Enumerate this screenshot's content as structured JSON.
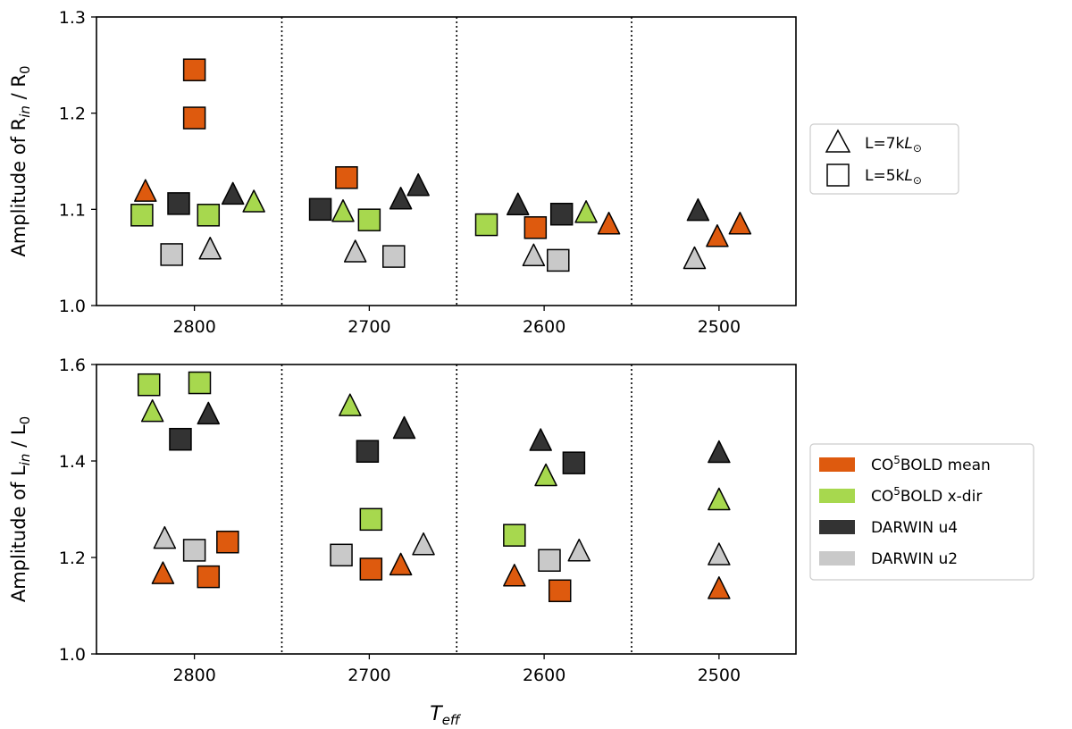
{
  "colors": {
    "co5bold_mean": "#de5a0e",
    "co5bold_xdir": "#a7d84e",
    "darwin_u4": "#333333",
    "darwin_u2": "#c9c9c9"
  },
  "chart_data": {
    "type": "scatter",
    "xlabel": "T",
    "xlabel_sub": "eff",
    "xlim": [
      2856,
      2456
    ],
    "xticks": [
      "2800",
      "2700",
      "2600",
      "2500"
    ],
    "group_separators": [
      2750,
      2650,
      2550
    ],
    "legend_size": {
      "position": "right-top",
      "entries": [
        {
          "marker": "triangle",
          "label_prefix": "L=7k",
          "label_L": "L",
          "label_sun": "⊙"
        },
        {
          "marker": "square",
          "label_prefix": "L=5k",
          "label_L": "L",
          "label_sun": "⊙"
        }
      ]
    },
    "legend_models": {
      "position": "right-bottom",
      "entries": [
        {
          "key": "co5bold_mean",
          "pre": "CO",
          "sup": "5",
          "post": "BOLD mean"
        },
        {
          "key": "co5bold_xdir",
          "pre": "CO",
          "sup": "5",
          "post": "BOLD x-dir"
        },
        {
          "key": "darwin_u4",
          "pre": "DARWIN u4",
          "sup": "",
          "post": ""
        },
        {
          "key": "darwin_u2",
          "pre": "DARWIN u2",
          "sup": "",
          "post": ""
        }
      ]
    },
    "panels": [
      {
        "name": "radius",
        "ylabel_pre": "Amplitude of R",
        "ylabel_sub": "in",
        "ylabel_post": " / R",
        "ylabel_sub2": "0",
        "ylim": [
          1.0,
          1.3
        ],
        "yticks": [
          "1.0",
          "1.1",
          "1.2",
          "1.3"
        ],
        "points": [
          {
            "x": 2800,
            "y": 1.245,
            "m": "square",
            "s": "co5bold_mean"
          },
          {
            "x": 2800,
            "y": 1.195,
            "m": "square",
            "s": "co5bold_mean"
          },
          {
            "x": 2828,
            "y": 1.118,
            "m": "triangle",
            "s": "co5bold_mean"
          },
          {
            "x": 2830,
            "y": 1.094,
            "m": "square",
            "s": "co5bold_xdir"
          },
          {
            "x": 2809,
            "y": 1.106,
            "m": "square",
            "s": "darwin_u4"
          },
          {
            "x": 2813,
            "y": 1.053,
            "m": "square",
            "s": "darwin_u2"
          },
          {
            "x": 2792,
            "y": 1.094,
            "m": "square",
            "s": "co5bold_xdir"
          },
          {
            "x": 2791,
            "y": 1.058,
            "m": "triangle",
            "s": "darwin_u2"
          },
          {
            "x": 2778,
            "y": 1.115,
            "m": "triangle",
            "s": "darwin_u4"
          },
          {
            "x": 2766,
            "y": 1.107,
            "m": "triangle",
            "s": "co5bold_xdir"
          },
          {
            "x": 2728,
            "y": 1.1,
            "m": "square",
            "s": "darwin_u4"
          },
          {
            "x": 2713,
            "y": 1.133,
            "m": "square",
            "s": "co5bold_mean"
          },
          {
            "x": 2715,
            "y": 1.097,
            "m": "triangle",
            "s": "co5bold_xdir"
          },
          {
            "x": 2700,
            "y": 1.089,
            "m": "square",
            "s": "co5bold_xdir"
          },
          {
            "x": 2708,
            "y": 1.055,
            "m": "triangle",
            "s": "darwin_u2"
          },
          {
            "x": 2686,
            "y": 1.051,
            "m": "square",
            "s": "darwin_u2"
          },
          {
            "x": 2682,
            "y": 1.11,
            "m": "triangle",
            "s": "darwin_u4"
          },
          {
            "x": 2672,
            "y": 1.124,
            "m": "triangle",
            "s": "darwin_u4"
          },
          {
            "x": 2633,
            "y": 1.084,
            "m": "square",
            "s": "co5bold_xdir"
          },
          {
            "x": 2615,
            "y": 1.104,
            "m": "triangle",
            "s": "darwin_u4"
          },
          {
            "x": 2605,
            "y": 1.081,
            "m": "square",
            "s": "co5bold_mean"
          },
          {
            "x": 2606,
            "y": 1.051,
            "m": "triangle",
            "s": "darwin_u2"
          },
          {
            "x": 2592,
            "y": 1.047,
            "m": "square",
            "s": "darwin_u2"
          },
          {
            "x": 2590,
            "y": 1.095,
            "m": "square",
            "s": "darwin_u4"
          },
          {
            "x": 2576,
            "y": 1.096,
            "m": "triangle",
            "s": "co5bold_xdir"
          },
          {
            "x": 2563,
            "y": 1.084,
            "m": "triangle",
            "s": "co5bold_mean"
          },
          {
            "x": 2512,
            "y": 1.098,
            "m": "triangle",
            "s": "darwin_u4"
          },
          {
            "x": 2501,
            "y": 1.071,
            "m": "triangle",
            "s": "co5bold_mean"
          },
          {
            "x": 2488,
            "y": 1.084,
            "m": "triangle",
            "s": "co5bold_mean"
          },
          {
            "x": 2514,
            "y": 1.048,
            "m": "triangle",
            "s": "darwin_u2"
          }
        ]
      },
      {
        "name": "luminosity",
        "ylabel_pre": "Amplitude of L",
        "ylabel_sub": "in",
        "ylabel_post": " / L",
        "ylabel_sub2": "0",
        "ylim": [
          1.0,
          1.6
        ],
        "yticks": [
          "1.0",
          "1.2",
          "1.4",
          "1.6"
        ],
        "points": [
          {
            "x": 2826,
            "y": 1.558,
            "m": "square",
            "s": "co5bold_xdir"
          },
          {
            "x": 2797,
            "y": 1.562,
            "m": "square",
            "s": "co5bold_xdir"
          },
          {
            "x": 2824,
            "y": 1.501,
            "m": "triangle",
            "s": "co5bold_xdir"
          },
          {
            "x": 2792,
            "y": 1.496,
            "m": "triangle",
            "s": "darwin_u4"
          },
          {
            "x": 2808,
            "y": 1.445,
            "m": "square",
            "s": "darwin_u4"
          },
          {
            "x": 2817,
            "y": 1.238,
            "m": "triangle",
            "s": "darwin_u2"
          },
          {
            "x": 2800,
            "y": 1.215,
            "m": "square",
            "s": "darwin_u2"
          },
          {
            "x": 2781,
            "y": 1.232,
            "m": "square",
            "s": "co5bold_mean"
          },
          {
            "x": 2818,
            "y": 1.165,
            "m": "triangle",
            "s": "co5bold_mean"
          },
          {
            "x": 2792,
            "y": 1.16,
            "m": "square",
            "s": "co5bold_mean"
          },
          {
            "x": 2711,
            "y": 1.513,
            "m": "triangle",
            "s": "co5bold_xdir"
          },
          {
            "x": 2701,
            "y": 1.42,
            "m": "square",
            "s": "darwin_u4"
          },
          {
            "x": 2680,
            "y": 1.466,
            "m": "triangle",
            "s": "darwin_u4"
          },
          {
            "x": 2699,
            "y": 1.279,
            "m": "square",
            "s": "co5bold_xdir"
          },
          {
            "x": 2716,
            "y": 1.205,
            "m": "square",
            "s": "darwin_u2"
          },
          {
            "x": 2669,
            "y": 1.225,
            "m": "triangle",
            "s": "darwin_u2"
          },
          {
            "x": 2699,
            "y": 1.176,
            "m": "square",
            "s": "co5bold_mean"
          },
          {
            "x": 2682,
            "y": 1.183,
            "m": "triangle",
            "s": "co5bold_mean"
          },
          {
            "x": 2602,
            "y": 1.441,
            "m": "triangle",
            "s": "darwin_u4"
          },
          {
            "x": 2583,
            "y": 1.396,
            "m": "square",
            "s": "darwin_u4"
          },
          {
            "x": 2599,
            "y": 1.368,
            "m": "triangle",
            "s": "co5bold_xdir"
          },
          {
            "x": 2617,
            "y": 1.246,
            "m": "square",
            "s": "co5bold_xdir"
          },
          {
            "x": 2597,
            "y": 1.194,
            "m": "square",
            "s": "darwin_u2"
          },
          {
            "x": 2580,
            "y": 1.212,
            "m": "triangle",
            "s": "darwin_u2"
          },
          {
            "x": 2617,
            "y": 1.16,
            "m": "triangle",
            "s": "co5bold_mean"
          },
          {
            "x": 2591,
            "y": 1.131,
            "m": "square",
            "s": "co5bold_mean"
          },
          {
            "x": 2500,
            "y": 1.416,
            "m": "triangle",
            "s": "darwin_u4"
          },
          {
            "x": 2500,
            "y": 1.318,
            "m": "triangle",
            "s": "co5bold_xdir"
          },
          {
            "x": 2500,
            "y": 1.204,
            "m": "triangle",
            "s": "darwin_u2"
          },
          {
            "x": 2500,
            "y": 1.134,
            "m": "triangle",
            "s": "co5bold_mean"
          }
        ]
      }
    ]
  }
}
